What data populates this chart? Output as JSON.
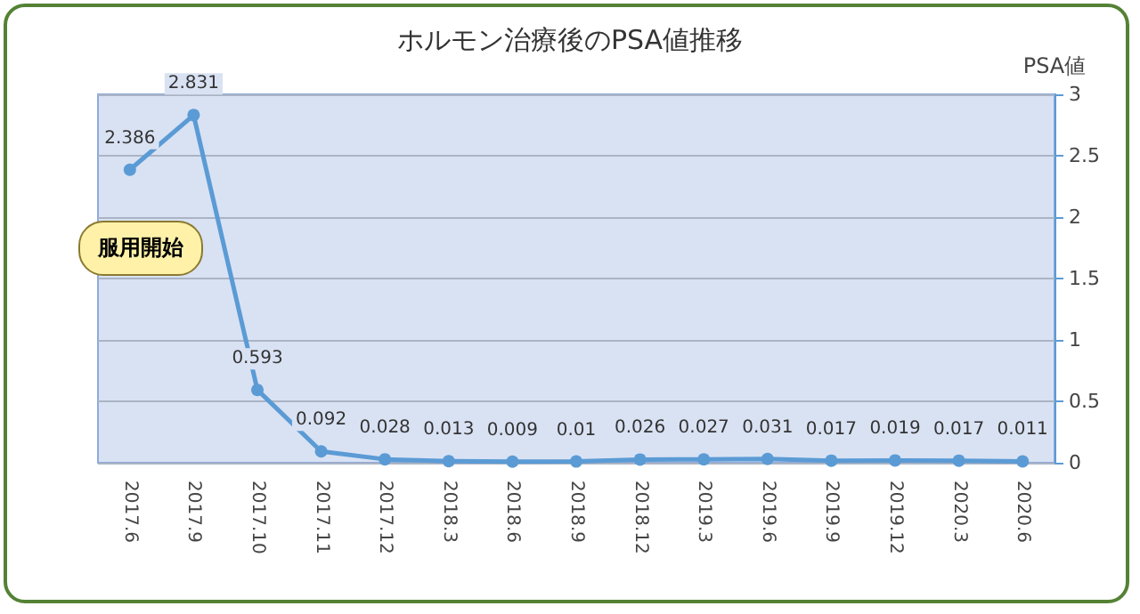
{
  "chart_data": {
    "type": "line",
    "title": "ホルモン治療後のPSA値推移",
    "ylabel": "PSA値",
    "categories": [
      "2017.6",
      "2017.9",
      "2017.10",
      "2017.11",
      "2017.12",
      "2018.3",
      "2018.6",
      "2018.9",
      "2018.12",
      "2019.3",
      "2019.6",
      "2019.9",
      "2019.12",
      "2020.3",
      "2020.6"
    ],
    "series": [
      {
        "color": "#5b9bd5",
        "values": [
          2.386,
          2.831,
          0.593,
          0.092,
          0.028,
          0.013,
          0.009,
          0.01,
          0.026,
          0.027,
          0.031,
          0.017,
          0.019,
          0.017,
          0.011
        ]
      }
    ],
    "ylim": [
      0,
      3
    ],
    "yticks": [
      0,
      0.5,
      1,
      1.5,
      2,
      2.5,
      3
    ],
    "grid": "y",
    "marker": "circle",
    "data_labels": true,
    "annotations": [
      "服用開始"
    ]
  }
}
